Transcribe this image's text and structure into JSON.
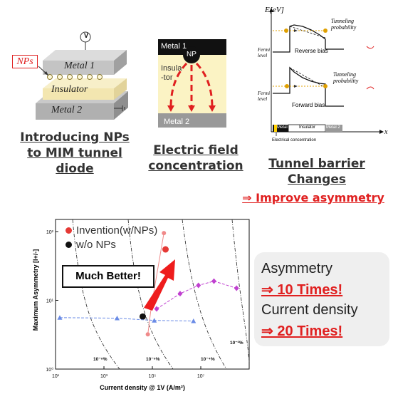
{
  "panel1": {
    "nps_label": "NPs",
    "metal1": "Metal 1",
    "insulator": "Insulator",
    "metal2": "Metal 2",
    "meter": "V",
    "caption_lines": [
      "Introducing NPs",
      "to MIM tunnel",
      "diode"
    ]
  },
  "panel2": {
    "metal1": "Metal 1",
    "np": "NP",
    "insulator_lines": [
      "Insula",
      "-tor"
    ],
    "metal2": "Metal 2",
    "caption_lines": [
      "Electric field",
      "concentration"
    ]
  },
  "panel3": {
    "y_axis": "E[eV]",
    "x_axis": "x",
    "top": {
      "fermi": [
        "Fermi",
        "level"
      ],
      "bias": "Reverse bias",
      "tunneling": [
        "Tunneling",
        "probability"
      ]
    },
    "bottom": {
      "fermi": [
        "Fermi",
        "level"
      ],
      "bias": "Forward bias",
      "tunneling": [
        "Tunneling",
        "probability"
      ]
    },
    "bar": {
      "metal1": "Metal 1",
      "insulator": "Insulator",
      "metal2": "Metal 2"
    },
    "ec": "Electrical concentration",
    "caption_lines": [
      "Tunnel barrier",
      "Changes"
    ],
    "improve": "⇒ Improve asymmetry"
  },
  "chart_data": {
    "type": "scatter",
    "xlabel": "Current density @ 1V (A/m²)",
    "ylabel": "Maximum Asymmetry [I+/-]",
    "x_scale": "log",
    "y_scale": "log",
    "xlim": [
      10,
      1000000000
    ],
    "ylim": [
      1,
      150
    ],
    "x_ticks": [
      "10¹",
      "10³",
      "10⁵",
      "10⁷"
    ],
    "y_ticks": [
      "10⁰",
      "10¹",
      "10²"
    ],
    "legend": [
      {
        "label": "Invention(w/NPs)",
        "color": "#e53935"
      },
      {
        "label": "w/o NPs",
        "color": "#111111"
      }
    ],
    "series": [
      {
        "name": "Invention(w/NPs)",
        "color": "#f08a8a",
        "points": [
          [
            65000,
            3.2
          ],
          [
            90000,
            8.0
          ],
          [
            300000,
            95.0
          ]
        ]
      },
      {
        "name": "Invention(w/NPs) best",
        "color": "#e53935",
        "points": [
          [
            350000,
            55.0
          ]
        ]
      },
      {
        "name": "w/o NPs",
        "color": "#111111",
        "points": [
          [
            40000,
            5.8
          ]
        ]
      },
      {
        "series_style": "triangles",
        "color": "#6a8be6",
        "points": [
          [
            15,
            5.6
          ],
          [
            3500,
            5.5
          ],
          [
            120000,
            5.1
          ],
          [
            5000000,
            5.0
          ]
        ]
      },
      {
        "series_style": "diamonds",
        "color": "#c040d0",
        "points": [
          [
            150000,
            7.5
          ],
          [
            1400000,
            12.5
          ],
          [
            8000000,
            16.5
          ],
          [
            35000000,
            19.0
          ],
          [
            300000000,
            15.0
          ]
        ]
      }
    ],
    "curve_labels": [
      "10⁻⁸%",
      "10⁻⁶%",
      "10⁻⁴%",
      "10⁻²%"
    ],
    "annotation": "Much Better!"
  },
  "summary": {
    "asymmetry": "Asymmetry",
    "asym_value": "⇒ 10 Times!",
    "current": "Current density",
    "current_value": "⇒ 20 Times!"
  }
}
